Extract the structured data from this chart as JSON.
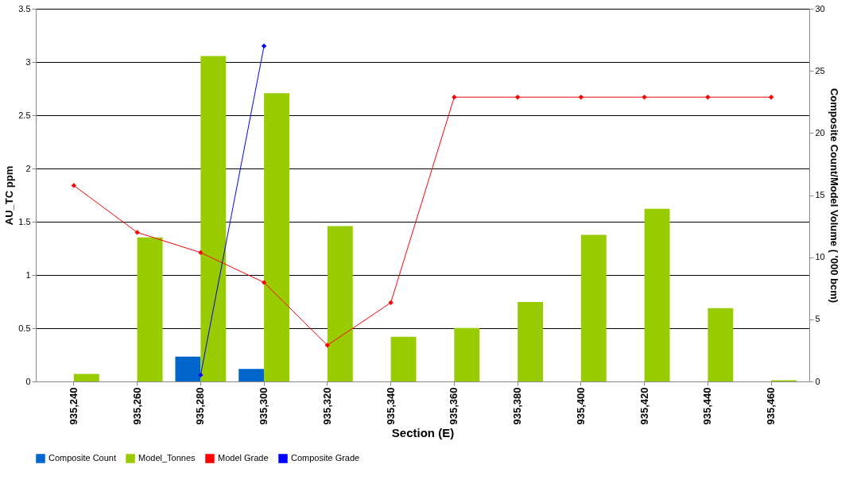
{
  "chart_data": {
    "type": "bar",
    "xlabel": "Section (E)",
    "ylabel": "AU_TC ppm",
    "y2label": "Composite Count/Model Volume ( '000 bcm)",
    "categories": [
      "935,240",
      "935,260",
      "935,280",
      "935,300",
      "935,320",
      "935,340",
      "935,360",
      "935,380",
      "935,400",
      "935,420",
      "935,440",
      "935,460"
    ],
    "series": [
      {
        "name": "Composite Count",
        "axis": "y2",
        "color": "#0066cc",
        "values": [
          null,
          null,
          2.0,
          1.0,
          null,
          null,
          null,
          null,
          null,
          null,
          null,
          null
        ]
      },
      {
        "name": "Model_Tonnes",
        "axis": "y2",
        "color": "#99cc00",
        "values": [
          0.6,
          11.6,
          26.2,
          23.2,
          12.5,
          3.6,
          4.3,
          6.4,
          11.8,
          13.9,
          5.9,
          0.1
        ]
      },
      {
        "name": "Model Grade",
        "type": "line",
        "color": "#ff0000",
        "values": [
          1.84,
          1.4,
          1.21,
          0.93,
          0.34,
          0.74,
          2.67,
          2.67,
          2.67,
          2.67,
          2.67,
          2.67
        ]
      },
      {
        "name": "Composite Grade",
        "type": "line",
        "color": "#0000ff",
        "values": [
          null,
          null,
          0.06,
          3.15,
          null,
          null,
          null,
          null,
          null,
          null,
          null,
          null
        ]
      }
    ],
    "ylim": [
      0,
      3.5
    ],
    "yticks": [
      0,
      0.5,
      1,
      1.5,
      2,
      2.5,
      3,
      3.5
    ],
    "y2lim": [
      0,
      30
    ],
    "y2ticks": [
      0,
      5,
      10,
      15,
      20,
      25,
      30
    ],
    "grid": "y",
    "legend": "bottom",
    "marker": "diamond",
    "line_style": "solid"
  }
}
